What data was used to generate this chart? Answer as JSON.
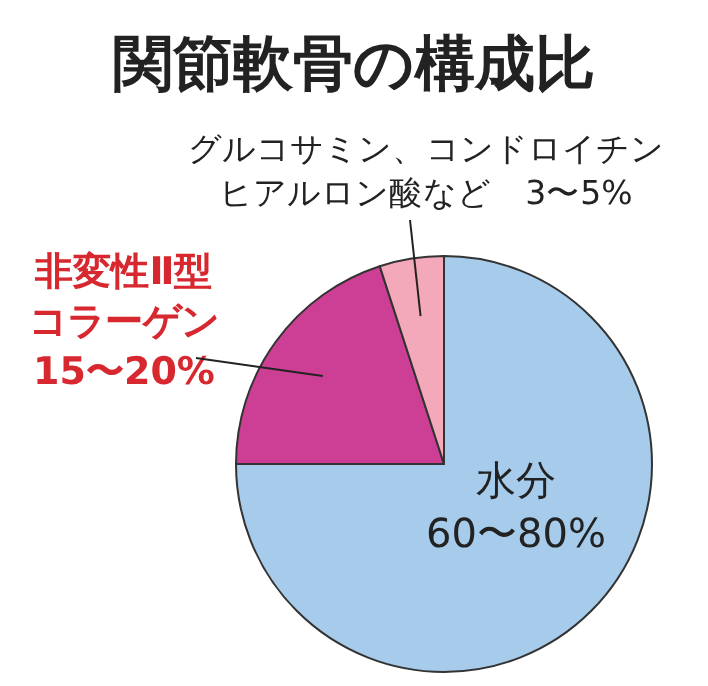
{
  "chart_data": {
    "type": "pie",
    "title": "関節軟骨の構成比",
    "categories": [
      "水分",
      "非変性Ⅱ型コラーゲン",
      "グルコサミン、コンドロイチンヒアルロン酸など"
    ],
    "values": [
      75,
      20,
      5
    ],
    "annotations": [
      "60〜80%",
      "15〜20%",
      "3〜5%"
    ],
    "colors": [
      "#a6cbeb",
      "#cc3f94",
      "#f4a9ba"
    ]
  }
}
